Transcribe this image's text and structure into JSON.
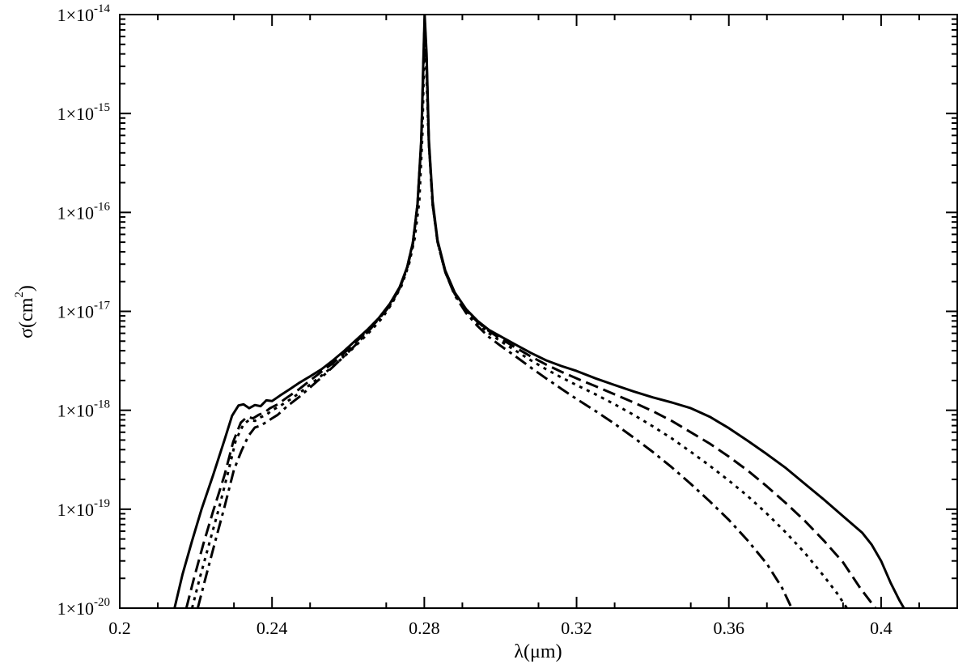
{
  "chart_data": {
    "type": "line",
    "xlabel": "λ(μm)",
    "ylabel": "σ(cm",
    "ylabel_sup": "2",
    "ylabel_close": ")",
    "xlim": [
      0.2,
      0.42
    ],
    "ylim": [
      1e-20,
      1e-14
    ],
    "yscale": "log",
    "grid": false,
    "x_ticks": [
      {
        "value": 0.2,
        "label": "0.2"
      },
      {
        "value": 0.24,
        "label": "0.24"
      },
      {
        "value": 0.28,
        "label": "0.28"
      },
      {
        "value": 0.32,
        "label": "0.32"
      },
      {
        "value": 0.36,
        "label": "0.36"
      },
      {
        "value": 0.4,
        "label": "0.4"
      }
    ],
    "y_ticks": [
      {
        "value": 1e-20,
        "mant": "1×10",
        "exp": "-20"
      },
      {
        "value": 1e-19,
        "mant": "1×10",
        "exp": "-19"
      },
      {
        "value": 1e-18,
        "mant": "1×10",
        "exp": "-18"
      },
      {
        "value": 1e-17,
        "mant": "1×10",
        "exp": "-17"
      },
      {
        "value": 1e-16,
        "mant": "1×10",
        "exp": "-16"
      },
      {
        "value": 1e-15,
        "mant": "1×10",
        "exp": "-15"
      },
      {
        "value": 1e-14,
        "mant": "1×10",
        "exp": "-14"
      }
    ],
    "series": [
      {
        "style": "solid",
        "points": [
          [
            0.2144,
            1e-20
          ],
          [
            0.2165,
            2.2e-20
          ],
          [
            0.219,
            4.8e-20
          ],
          [
            0.2215,
            1e-19
          ],
          [
            0.2245,
            2.2e-19
          ],
          [
            0.2275,
            5e-19
          ],
          [
            0.2295,
            8.8e-19
          ],
          [
            0.2312,
            1.12e-18
          ],
          [
            0.2325,
            1.15e-18
          ],
          [
            0.234,
            1.05e-18
          ],
          [
            0.2355,
            1.13e-18
          ],
          [
            0.237,
            1.1e-18
          ],
          [
            0.2385,
            1.26e-18
          ],
          [
            0.24,
            1.24e-18
          ],
          [
            0.242,
            1.4e-18
          ],
          [
            0.2445,
            1.62e-18
          ],
          [
            0.247,
            1.88e-18
          ],
          [
            0.25,
            2.2e-18
          ],
          [
            0.253,
            2.6e-18
          ],
          [
            0.256,
            3.2e-18
          ],
          [
            0.259,
            4e-18
          ],
          [
            0.262,
            5.1e-18
          ],
          [
            0.265,
            6.5e-18
          ],
          [
            0.268,
            8.5e-18
          ],
          [
            0.271,
            1.2e-17
          ],
          [
            0.2735,
            1.75e-17
          ],
          [
            0.2755,
            2.8e-17
          ],
          [
            0.277,
            5e-17
          ],
          [
            0.2782,
            1.2e-16
          ],
          [
            0.2792,
            5.5e-16
          ],
          [
            0.2798,
            4e-15
          ],
          [
            0.2801,
            1e-14
          ],
          [
            0.2806,
            4e-15
          ],
          [
            0.2812,
            5.5e-16
          ],
          [
            0.2822,
            1.3e-16
          ],
          [
            0.2835,
            5.2e-17
          ],
          [
            0.2855,
            2.6e-17
          ],
          [
            0.288,
            1.55e-17
          ],
          [
            0.291,
            1.05e-17
          ],
          [
            0.294,
            8e-18
          ],
          [
            0.297,
            6.5e-18
          ],
          [
            0.3,
            5.6e-18
          ],
          [
            0.304,
            4.6e-18
          ],
          [
            0.308,
            3.8e-18
          ],
          [
            0.312,
            3.2e-18
          ],
          [
            0.316,
            2.8e-18
          ],
          [
            0.32,
            2.5e-18
          ],
          [
            0.325,
            2.1e-18
          ],
          [
            0.33,
            1.8e-18
          ],
          [
            0.335,
            1.55e-18
          ],
          [
            0.34,
            1.35e-18
          ],
          [
            0.345,
            1.2e-18
          ],
          [
            0.35,
            1.05e-18
          ],
          [
            0.355,
            8.6e-19
          ],
          [
            0.36,
            6.6e-19
          ],
          [
            0.365,
            4.9e-19
          ],
          [
            0.37,
            3.6e-19
          ],
          [
            0.375,
            2.6e-19
          ],
          [
            0.38,
            1.8e-19
          ],
          [
            0.385,
            1.25e-19
          ],
          [
            0.39,
            8.5e-20
          ],
          [
            0.395,
            5.8e-20
          ],
          [
            0.3975,
            4.4e-20
          ],
          [
            0.4,
            3e-20
          ],
          [
            0.4025,
            1.8e-20
          ],
          [
            0.4048,
            1.2e-20
          ],
          [
            0.406,
            1e-20
          ]
        ]
      },
      {
        "style": "dashed",
        "points": [
          [
            0.2175,
            1e-20
          ],
          [
            0.2195,
            2e-20
          ],
          [
            0.222,
            4.5e-20
          ],
          [
            0.2245,
            9.5e-20
          ],
          [
            0.2275,
            2.2e-19
          ],
          [
            0.2298,
            4.8e-19
          ],
          [
            0.2318,
            7.5e-19
          ],
          [
            0.2335,
            8.6e-19
          ],
          [
            0.235,
            8.3e-19
          ],
          [
            0.2365,
            9e-19
          ],
          [
            0.238,
            9.5e-19
          ],
          [
            0.2395,
            1.05e-18
          ],
          [
            0.2415,
            1.15e-18
          ],
          [
            0.244,
            1.35e-18
          ],
          [
            0.247,
            1.62e-18
          ],
          [
            0.25,
            2e-18
          ],
          [
            0.253,
            2.45e-18
          ],
          [
            0.256,
            3e-18
          ],
          [
            0.259,
            3.8e-18
          ],
          [
            0.262,
            4.9e-18
          ],
          [
            0.265,
            6.3e-18
          ],
          [
            0.268,
            8.3e-18
          ],
          [
            0.271,
            1.15e-17
          ],
          [
            0.2735,
            1.7e-17
          ],
          [
            0.2755,
            2.7e-17
          ],
          [
            0.277,
            4.8e-17
          ],
          [
            0.2782,
            1.15e-16
          ],
          [
            0.2792,
            5e-16
          ],
          [
            0.2798,
            3.5e-15
          ],
          [
            0.2801,
            9e-15
          ],
          [
            0.2806,
            3.5e-15
          ],
          [
            0.2812,
            5e-16
          ],
          [
            0.2822,
            1.2e-16
          ],
          [
            0.2835,
            5e-17
          ],
          [
            0.2855,
            2.5e-17
          ],
          [
            0.288,
            1.5e-17
          ],
          [
            0.291,
            1.02e-17
          ],
          [
            0.294,
            7.8e-18
          ],
          [
            0.297,
            6.3e-18
          ],
          [
            0.3,
            5.3e-18
          ],
          [
            0.304,
            4.3e-18
          ],
          [
            0.308,
            3.5e-18
          ],
          [
            0.312,
            2.9e-18
          ],
          [
            0.316,
            2.45e-18
          ],
          [
            0.32,
            2.1e-18
          ],
          [
            0.325,
            1.75e-18
          ],
          [
            0.33,
            1.45e-18
          ],
          [
            0.335,
            1.2e-18
          ],
          [
            0.34,
            9.8e-19
          ],
          [
            0.345,
            7.8e-19
          ],
          [
            0.35,
            6e-19
          ],
          [
            0.355,
            4.6e-19
          ],
          [
            0.36,
            3.4e-19
          ],
          [
            0.365,
            2.45e-19
          ],
          [
            0.37,
            1.7e-19
          ],
          [
            0.375,
            1.15e-19
          ],
          [
            0.38,
            7.6e-20
          ],
          [
            0.385,
            4.8e-20
          ],
          [
            0.39,
            2.9e-20
          ],
          [
            0.3945,
            1.6e-20
          ],
          [
            0.3985,
            1e-20
          ]
        ]
      },
      {
        "style": "dotted",
        "points": [
          [
            0.219,
            1e-20
          ],
          [
            0.221,
            2e-20
          ],
          [
            0.2235,
            4.5e-20
          ],
          [
            0.226,
            1e-19
          ],
          [
            0.2285,
            2.4e-19
          ],
          [
            0.2305,
            5e-19
          ],
          [
            0.2325,
            7.2e-19
          ],
          [
            0.234,
            8e-19
          ],
          [
            0.2355,
            7.8e-19
          ],
          [
            0.237,
            8.5e-19
          ],
          [
            0.2385,
            9e-19
          ],
          [
            0.24,
            1e-18
          ],
          [
            0.242,
            1.1e-18
          ],
          [
            0.245,
            1.3e-18
          ],
          [
            0.248,
            1.58e-18
          ],
          [
            0.251,
            1.95e-18
          ],
          [
            0.254,
            2.4e-18
          ],
          [
            0.257,
            3e-18
          ],
          [
            0.26,
            3.8e-18
          ],
          [
            0.263,
            4.9e-18
          ],
          [
            0.266,
            6.4e-18
          ],
          [
            0.269,
            8.6e-18
          ],
          [
            0.2715,
            1.2e-17
          ],
          [
            0.274,
            1.8e-17
          ],
          [
            0.276,
            3e-17
          ],
          [
            0.2775,
            5.5e-17
          ],
          [
            0.2787,
            1.3e-16
          ],
          [
            0.2795,
            6e-16
          ],
          [
            0.2799,
            3e-15
          ],
          [
            0.2801,
            8e-15
          ],
          [
            0.2805,
            3e-15
          ],
          [
            0.2811,
            6e-16
          ],
          [
            0.2822,
            1.2e-16
          ],
          [
            0.2835,
            5e-17
          ],
          [
            0.2855,
            2.5e-17
          ],
          [
            0.288,
            1.5e-17
          ],
          [
            0.291,
            1e-17
          ],
          [
            0.294,
            7.6e-18
          ],
          [
            0.297,
            6e-18
          ],
          [
            0.3,
            5e-18
          ],
          [
            0.304,
            4e-18
          ],
          [
            0.308,
            3.2e-18
          ],
          [
            0.312,
            2.6e-18
          ],
          [
            0.316,
            2.15e-18
          ],
          [
            0.32,
            1.8e-18
          ],
          [
            0.325,
            1.45e-18
          ],
          [
            0.33,
            1.15e-18
          ],
          [
            0.335,
            9e-19
          ],
          [
            0.34,
            6.9e-19
          ],
          [
            0.345,
            5.2e-19
          ],
          [
            0.35,
            3.8e-19
          ],
          [
            0.355,
            2.75e-19
          ],
          [
            0.36,
            1.95e-19
          ],
          [
            0.365,
            1.35e-19
          ],
          [
            0.37,
            9e-20
          ],
          [
            0.375,
            5.8e-20
          ],
          [
            0.38,
            3.6e-20
          ],
          [
            0.385,
            2.1e-20
          ],
          [
            0.3885,
            1.4e-20
          ],
          [
            0.391,
            1e-20
          ]
        ]
      },
      {
        "style": "dash-dot",
        "points": [
          [
            0.2205,
            1e-20
          ],
          [
            0.2225,
            2e-20
          ],
          [
            0.225,
            4.6e-20
          ],
          [
            0.2275,
            1.05e-19
          ],
          [
            0.23,
            2.5e-19
          ],
          [
            0.232,
            3.9e-19
          ],
          [
            0.2338,
            5.5e-19
          ],
          [
            0.2355,
            6.7e-19
          ],
          [
            0.237,
            7e-19
          ],
          [
            0.2385,
            7.6e-19
          ],
          [
            0.24,
            8.3e-19
          ],
          [
            0.2415,
            9e-19
          ],
          [
            0.244,
            1.1e-18
          ],
          [
            0.247,
            1.35e-18
          ],
          [
            0.25,
            1.7e-18
          ],
          [
            0.253,
            2.15e-18
          ],
          [
            0.256,
            2.75e-18
          ],
          [
            0.259,
            3.55e-18
          ],
          [
            0.262,
            4.6e-18
          ],
          [
            0.265,
            6.1e-18
          ],
          [
            0.268,
            8.2e-18
          ],
          [
            0.271,
            1.15e-17
          ],
          [
            0.2735,
            1.7e-17
          ],
          [
            0.2755,
            2.8e-17
          ],
          [
            0.277,
            5e-17
          ],
          [
            0.2782,
            1.2e-16
          ],
          [
            0.2792,
            5e-16
          ],
          [
            0.2798,
            3.2e-15
          ],
          [
            0.2801,
            7e-15
          ],
          [
            0.2806,
            3.2e-15
          ],
          [
            0.2812,
            5e-16
          ],
          [
            0.2822,
            1.2e-16
          ],
          [
            0.2835,
            5e-17
          ],
          [
            0.2855,
            2.5e-17
          ],
          [
            0.288,
            1.45e-17
          ],
          [
            0.291,
            9.6e-18
          ],
          [
            0.294,
            7.1e-18
          ],
          [
            0.297,
            5.5e-18
          ],
          [
            0.3,
            4.5e-18
          ],
          [
            0.304,
            3.5e-18
          ],
          [
            0.308,
            2.7e-18
          ],
          [
            0.312,
            2.1e-18
          ],
          [
            0.316,
            1.65e-18
          ],
          [
            0.32,
            1.3e-18
          ],
          [
            0.325,
            9.8e-19
          ],
          [
            0.33,
            7.3e-19
          ],
          [
            0.335,
            5.3e-19
          ],
          [
            0.34,
            3.8e-19
          ],
          [
            0.345,
            2.65e-19
          ],
          [
            0.35,
            1.8e-19
          ],
          [
            0.355,
            1.2e-19
          ],
          [
            0.36,
            7.8e-20
          ],
          [
            0.365,
            4.8e-20
          ],
          [
            0.37,
            2.8e-20
          ],
          [
            0.374,
            1.6e-20
          ],
          [
            0.3765,
            1e-20
          ]
        ]
      }
    ]
  }
}
